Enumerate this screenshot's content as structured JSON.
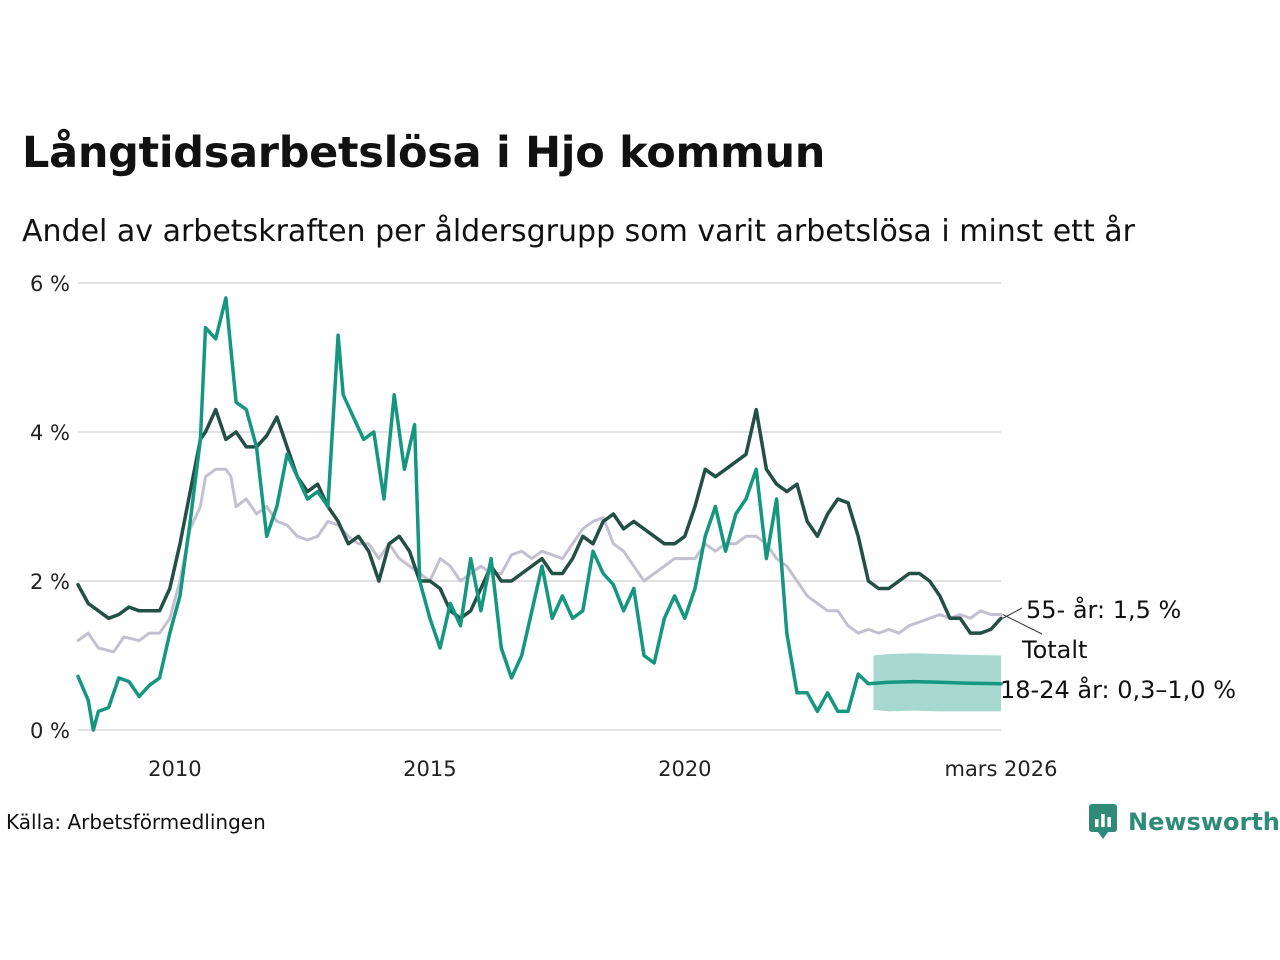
{
  "header": {
    "title": "Långtidsarbetslösa i Hjo kommun",
    "subtitle": "Andel av arbetskraften per åldersgrupp som varit arbetslösa i minst ett år"
  },
  "footer": {
    "source": "Källa: Arbetsförmedlingen",
    "brand": "Newsworthy"
  },
  "colors": {
    "age55": "#234f45",
    "totalt": "#c4c0cf",
    "age18_24": "#14967f",
    "band": "#a6d8cf",
    "grid": "#e2e2e2",
    "brand": "#2f8a78"
  },
  "chart_data": {
    "type": "line",
    "title": "Långtidsarbetslösa i Hjo kommun",
    "xlabel": "",
    "ylabel": "",
    "xlim": [
      2008.1,
      2026.2
    ],
    "ylim": [
      0,
      6
    ],
    "grid": true,
    "y_ticks": [
      {
        "value": 0,
        "label": "0 %"
      },
      {
        "value": 2,
        "label": "2 %"
      },
      {
        "value": 4,
        "label": "4 %"
      },
      {
        "value": 6,
        "label": "6 %"
      }
    ],
    "x_ticks": [
      {
        "value": 2010,
        "label": "2010"
      },
      {
        "value": 2015,
        "label": "2015"
      },
      {
        "value": 2020,
        "label": "2020"
      },
      {
        "value": 2026.2,
        "label": "mars 2026"
      }
    ],
    "series": [
      {
        "name": "Totalt",
        "label": "Totalt",
        "color": "#c4c0cf",
        "points": [
          [
            2008.1,
            1.2
          ],
          [
            2008.3,
            1.3
          ],
          [
            2008.5,
            1.1
          ],
          [
            2008.8,
            1.05
          ],
          [
            2009.0,
            1.25
          ],
          [
            2009.3,
            1.2
          ],
          [
            2009.5,
            1.3
          ],
          [
            2009.7,
            1.3
          ],
          [
            2009.9,
            1.5
          ],
          [
            2010.1,
            2.0
          ],
          [
            2010.3,
            2.7
          ],
          [
            2010.5,
            3.0
          ],
          [
            2010.6,
            3.4
          ],
          [
            2010.8,
            3.5
          ],
          [
            2011.0,
            3.5
          ],
          [
            2011.1,
            3.4
          ],
          [
            2011.2,
            3.0
          ],
          [
            2011.4,
            3.1
          ],
          [
            2011.6,
            2.9
          ],
          [
            2011.8,
            3.0
          ],
          [
            2012.0,
            2.8
          ],
          [
            2012.2,
            2.75
          ],
          [
            2012.4,
            2.6
          ],
          [
            2012.6,
            2.55
          ],
          [
            2012.8,
            2.6
          ],
          [
            2013.0,
            2.8
          ],
          [
            2013.2,
            2.75
          ],
          [
            2013.4,
            2.6
          ],
          [
            2013.6,
            2.5
          ],
          [
            2013.8,
            2.5
          ],
          [
            2014.0,
            2.3
          ],
          [
            2014.2,
            2.5
          ],
          [
            2014.4,
            2.3
          ],
          [
            2014.6,
            2.2
          ],
          [
            2014.8,
            2.1
          ],
          [
            2015.0,
            2.0
          ],
          [
            2015.2,
            2.3
          ],
          [
            2015.4,
            2.2
          ],
          [
            2015.6,
            2.0
          ],
          [
            2015.8,
            2.1
          ],
          [
            2016.0,
            2.2
          ],
          [
            2016.2,
            2.1
          ],
          [
            2016.4,
            2.1
          ],
          [
            2016.6,
            2.35
          ],
          [
            2016.8,
            2.4
          ],
          [
            2017.0,
            2.3
          ],
          [
            2017.2,
            2.4
          ],
          [
            2017.4,
            2.35
          ],
          [
            2017.6,
            2.3
          ],
          [
            2017.8,
            2.5
          ],
          [
            2018.0,
            2.7
          ],
          [
            2018.2,
            2.8
          ],
          [
            2018.4,
            2.85
          ],
          [
            2018.6,
            2.5
          ],
          [
            2018.8,
            2.4
          ],
          [
            2019.0,
            2.2
          ],
          [
            2019.2,
            2.0
          ],
          [
            2019.4,
            2.1
          ],
          [
            2019.6,
            2.2
          ],
          [
            2019.8,
            2.3
          ],
          [
            2020.0,
            2.3
          ],
          [
            2020.2,
            2.3
          ],
          [
            2020.4,
            2.5
          ],
          [
            2020.6,
            2.4
          ],
          [
            2020.8,
            2.5
          ],
          [
            2021.0,
            2.5
          ],
          [
            2021.2,
            2.6
          ],
          [
            2021.4,
            2.6
          ],
          [
            2021.6,
            2.5
          ],
          [
            2021.8,
            2.3
          ],
          [
            2022.0,
            2.2
          ],
          [
            2022.2,
            2.0
          ],
          [
            2022.4,
            1.8
          ],
          [
            2022.6,
            1.7
          ],
          [
            2022.8,
            1.6
          ],
          [
            2023.0,
            1.6
          ],
          [
            2023.2,
            1.4
          ],
          [
            2023.4,
            1.3
          ],
          [
            2023.6,
            1.35
          ],
          [
            2023.8,
            1.3
          ],
          [
            2024.0,
            1.35
          ],
          [
            2024.2,
            1.3
          ],
          [
            2024.4,
            1.4
          ],
          [
            2024.6,
            1.45
          ],
          [
            2024.8,
            1.5
          ],
          [
            2025.0,
            1.55
          ],
          [
            2025.2,
            1.5
          ],
          [
            2025.4,
            1.55
          ],
          [
            2025.6,
            1.5
          ],
          [
            2025.8,
            1.6
          ],
          [
            2026.0,
            1.55
          ],
          [
            2026.2,
            1.55
          ]
        ]
      },
      {
        "name": "55- år",
        "label": "55- år: 1,5 %",
        "color": "#234f45",
        "points": [
          [
            2008.1,
            1.95
          ],
          [
            2008.3,
            1.7
          ],
          [
            2008.5,
            1.6
          ],
          [
            2008.7,
            1.5
          ],
          [
            2008.9,
            1.55
          ],
          [
            2009.1,
            1.65
          ],
          [
            2009.3,
            1.6
          ],
          [
            2009.5,
            1.6
          ],
          [
            2009.7,
            1.6
          ],
          [
            2009.9,
            1.9
          ],
          [
            2010.1,
            2.5
          ],
          [
            2010.3,
            3.2
          ],
          [
            2010.5,
            3.9
          ],
          [
            2010.6,
            4.0
          ],
          [
            2010.8,
            4.3
          ],
          [
            2011.0,
            3.9
          ],
          [
            2011.2,
            4.0
          ],
          [
            2011.4,
            3.8
          ],
          [
            2011.6,
            3.8
          ],
          [
            2011.8,
            3.95
          ],
          [
            2012.0,
            4.2
          ],
          [
            2012.2,
            3.8
          ],
          [
            2012.4,
            3.4
          ],
          [
            2012.6,
            3.2
          ],
          [
            2012.8,
            3.3
          ],
          [
            2013.0,
            3.0
          ],
          [
            2013.2,
            2.8
          ],
          [
            2013.4,
            2.5
          ],
          [
            2013.6,
            2.6
          ],
          [
            2013.8,
            2.4
          ],
          [
            2014.0,
            2.0
          ],
          [
            2014.2,
            2.5
          ],
          [
            2014.4,
            2.6
          ],
          [
            2014.6,
            2.4
          ],
          [
            2014.8,
            2.0
          ],
          [
            2015.0,
            2.0
          ],
          [
            2015.2,
            1.9
          ],
          [
            2015.4,
            1.6
          ],
          [
            2015.6,
            1.5
          ],
          [
            2015.8,
            1.6
          ],
          [
            2016.0,
            1.9
          ],
          [
            2016.2,
            2.2
          ],
          [
            2016.4,
            2.0
          ],
          [
            2016.6,
            2.0
          ],
          [
            2016.8,
            2.1
          ],
          [
            2017.0,
            2.2
          ],
          [
            2017.2,
            2.3
          ],
          [
            2017.4,
            2.1
          ],
          [
            2017.6,
            2.1
          ],
          [
            2017.8,
            2.3
          ],
          [
            2018.0,
            2.6
          ],
          [
            2018.2,
            2.5
          ],
          [
            2018.4,
            2.8
          ],
          [
            2018.6,
            2.9
          ],
          [
            2018.8,
            2.7
          ],
          [
            2019.0,
            2.8
          ],
          [
            2019.2,
            2.7
          ],
          [
            2019.4,
            2.6
          ],
          [
            2019.6,
            2.5
          ],
          [
            2019.8,
            2.5
          ],
          [
            2020.0,
            2.6
          ],
          [
            2020.2,
            3.0
          ],
          [
            2020.4,
            3.5
          ],
          [
            2020.6,
            3.4
          ],
          [
            2020.8,
            3.5
          ],
          [
            2021.0,
            3.6
          ],
          [
            2021.2,
            3.7
          ],
          [
            2021.4,
            4.3
          ],
          [
            2021.6,
            3.5
          ],
          [
            2021.8,
            3.3
          ],
          [
            2022.0,
            3.2
          ],
          [
            2022.2,
            3.3
          ],
          [
            2022.4,
            2.8
          ],
          [
            2022.6,
            2.6
          ],
          [
            2022.8,
            2.9
          ],
          [
            2023.0,
            3.1
          ],
          [
            2023.2,
            3.05
          ],
          [
            2023.4,
            2.6
          ],
          [
            2023.6,
            2.0
          ],
          [
            2023.8,
            1.9
          ],
          [
            2024.0,
            1.9
          ],
          [
            2024.2,
            2.0
          ],
          [
            2024.4,
            2.1
          ],
          [
            2024.6,
            2.1
          ],
          [
            2024.8,
            2.0
          ],
          [
            2025.0,
            1.8
          ],
          [
            2025.2,
            1.5
          ],
          [
            2025.4,
            1.5
          ],
          [
            2025.6,
            1.3
          ],
          [
            2025.8,
            1.3
          ],
          [
            2026.0,
            1.35
          ],
          [
            2026.2,
            1.5
          ]
        ]
      },
      {
        "name": "18-24 år",
        "label": "18-24 år: 0,3–1,0 %",
        "color": "#14967f",
        "points": [
          [
            2008.1,
            0.72
          ],
          [
            2008.3,
            0.4
          ],
          [
            2008.4,
            0.0
          ],
          [
            2008.5,
            0.25
          ],
          [
            2008.7,
            0.3
          ],
          [
            2008.9,
            0.7
          ],
          [
            2009.1,
            0.65
          ],
          [
            2009.3,
            0.45
          ],
          [
            2009.5,
            0.6
          ],
          [
            2009.7,
            0.7
          ],
          [
            2009.9,
            1.3
          ],
          [
            2010.1,
            1.8
          ],
          [
            2010.3,
            2.8
          ],
          [
            2010.5,
            3.9
          ],
          [
            2010.6,
            5.4
          ],
          [
            2010.8,
            5.25
          ],
          [
            2011.0,
            5.8
          ],
          [
            2011.2,
            4.4
          ],
          [
            2011.4,
            4.3
          ],
          [
            2011.6,
            3.8
          ],
          [
            2011.8,
            2.6
          ],
          [
            2012.0,
            3.0
          ],
          [
            2012.2,
            3.7
          ],
          [
            2012.4,
            3.4
          ],
          [
            2012.6,
            3.1
          ],
          [
            2012.8,
            3.2
          ],
          [
            2013.0,
            3.0
          ],
          [
            2013.2,
            5.3
          ],
          [
            2013.3,
            4.5
          ],
          [
            2013.5,
            4.2
          ],
          [
            2013.7,
            3.9
          ],
          [
            2013.9,
            4.0
          ],
          [
            2014.1,
            3.1
          ],
          [
            2014.3,
            4.5
          ],
          [
            2014.5,
            3.5
          ],
          [
            2014.7,
            4.1
          ],
          [
            2014.8,
            2.0
          ],
          [
            2015.0,
            1.5
          ],
          [
            2015.2,
            1.1
          ],
          [
            2015.4,
            1.7
          ],
          [
            2015.6,
            1.4
          ],
          [
            2015.8,
            2.3
          ],
          [
            2016.0,
            1.6
          ],
          [
            2016.2,
            2.3
          ],
          [
            2016.4,
            1.1
          ],
          [
            2016.6,
            0.7
          ],
          [
            2016.8,
            1.0
          ],
          [
            2017.0,
            1.6
          ],
          [
            2017.2,
            2.2
          ],
          [
            2017.4,
            1.5
          ],
          [
            2017.6,
            1.8
          ],
          [
            2017.8,
            1.5
          ],
          [
            2018.0,
            1.6
          ],
          [
            2018.2,
            2.4
          ],
          [
            2018.4,
            2.1
          ],
          [
            2018.6,
            1.95
          ],
          [
            2018.8,
            1.6
          ],
          [
            2019.0,
            1.9
          ],
          [
            2019.2,
            1.0
          ],
          [
            2019.4,
            0.9
          ],
          [
            2019.6,
            1.5
          ],
          [
            2019.8,
            1.8
          ],
          [
            2020.0,
            1.5
          ],
          [
            2020.2,
            1.9
          ],
          [
            2020.4,
            2.6
          ],
          [
            2020.6,
            3.0
          ],
          [
            2020.8,
            2.4
          ],
          [
            2021.0,
            2.9
          ],
          [
            2021.2,
            3.1
          ],
          [
            2021.4,
            3.5
          ],
          [
            2021.6,
            2.3
          ],
          [
            2021.8,
            3.1
          ],
          [
            2022.0,
            1.3
          ],
          [
            2022.2,
            0.5
          ],
          [
            2022.4,
            0.5
          ],
          [
            2022.6,
            0.25
          ],
          [
            2022.8,
            0.5
          ],
          [
            2023.0,
            0.25
          ],
          [
            2023.2,
            0.25
          ],
          [
            2023.4,
            0.75
          ],
          [
            2023.6,
            0.62
          ],
          [
            2024.0,
            0.64
          ],
          [
            2024.5,
            0.65
          ],
          [
            2025.0,
            0.64
          ],
          [
            2025.5,
            0.63
          ],
          [
            2026.2,
            0.62
          ]
        ]
      }
    ],
    "band": {
      "series": "18-24 år",
      "x": [
        2023.7,
        2024.0,
        2024.5,
        2025.0,
        2025.5,
        2026.2
      ],
      "lower": [
        0.27,
        0.25,
        0.26,
        0.25,
        0.25,
        0.25
      ],
      "upper": [
        1.0,
        1.02,
        1.03,
        1.02,
        1.01,
        1.0
      ]
    }
  }
}
